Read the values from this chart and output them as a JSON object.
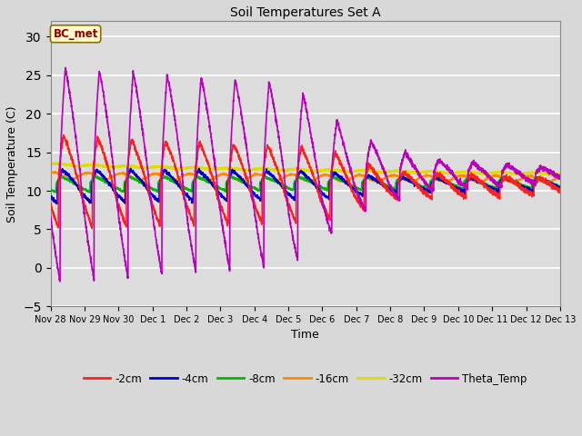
{
  "title": "Soil Temperatures Set A",
  "xlabel": "Time",
  "ylabel": "Soil Temperature (C)",
  "ylim": [
    -5,
    32
  ],
  "yticks": [
    -5,
    0,
    5,
    10,
    15,
    20,
    25,
    30
  ],
  "annotation_text": "BC_met",
  "annotation_color": "#8B0000",
  "annotation_bg": "#FFFACD",
  "fig_bg": "#D8D8D8",
  "plot_bg": "#DCDCDC",
  "series": {
    "-2cm": {
      "color": "#FF2020",
      "lw": 1.2
    },
    "-4cm": {
      "color": "#0000CC",
      "lw": 1.2
    },
    "-8cm": {
      "color": "#00BB00",
      "lw": 1.2
    },
    "-16cm": {
      "color": "#FF8800",
      "lw": 1.2
    },
    "-32cm": {
      "color": "#DDDD00",
      "lw": 1.8
    },
    "Theta_Temp": {
      "color": "#BB00BB",
      "lw": 1.2
    }
  },
  "xtick_labels": [
    "Nov 28",
    "Nov 29",
    "Nov 30",
    "Dec 1",
    "Dec 2",
    "Dec 3",
    "Dec 4",
    "Dec 5",
    "Dec 6",
    "Dec 7",
    "Dec 8",
    "Dec 9",
    "Dec 10",
    "Dec 11",
    "Dec 12",
    "Dec 13"
  ],
  "n_days": 15,
  "points_per_day": 240
}
